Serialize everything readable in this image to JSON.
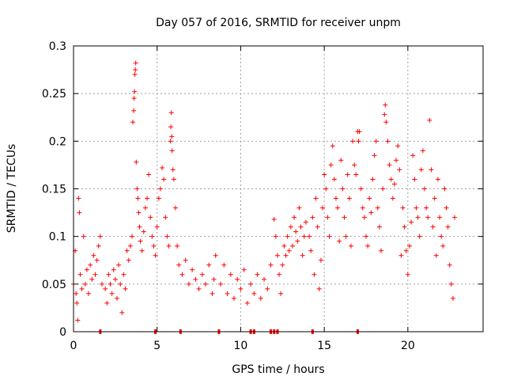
{
  "chart_data": {
    "type": "scatter",
    "title": "Day 057 of 2016, SRMTID for receiver unpm",
    "xlabel": "GPS time / hours",
    "ylabel": "SRMTID / TECUs",
    "xlim": [
      0,
      24.5
    ],
    "ylim": [
      0,
      0.3
    ],
    "xticks": [
      0,
      5,
      10,
      15,
      20
    ],
    "xtick_labels": [
      "0",
      "5",
      "10",
      "15",
      "20"
    ],
    "yticks": [
      0,
      0.05,
      0.1,
      0.15,
      0.2,
      0.25,
      0.3
    ],
    "ytick_labels": [
      "0",
      "0.05",
      "0.1",
      "0.15",
      "0.2",
      "0.25",
      "0.3"
    ],
    "grid": true,
    "marker": "+",
    "color": "#ff0000",
    "series": [
      {
        "name": "SRMTID",
        "points": [
          [
            0.0,
            0.05
          ],
          [
            0.1,
            0.085
          ],
          [
            0.15,
            0.04
          ],
          [
            0.2,
            0.03
          ],
          [
            0.25,
            0.012
          ],
          [
            0.3,
            0.14
          ],
          [
            0.35,
            0.125
          ],
          [
            0.4,
            0.06
          ],
          [
            0.5,
            0.045
          ],
          [
            0.6,
            0.1
          ],
          [
            0.7,
            0.05
          ],
          [
            0.8,
            0.065
          ],
          [
            0.9,
            0.04
          ],
          [
            1.0,
            0.07
          ],
          [
            1.1,
            0.055
          ],
          [
            1.2,
            0.08
          ],
          [
            1.3,
            0.06
          ],
          [
            1.4,
            0.075
          ],
          [
            1.5,
            0.09
          ],
          [
            1.6,
            0.1
          ],
          [
            1.7,
            0.05
          ],
          [
            1.9,
            0.045
          ],
          [
            2.0,
            0.03
          ],
          [
            2.1,
            0.06
          ],
          [
            2.2,
            0.05
          ],
          [
            2.3,
            0.04
          ],
          [
            2.4,
            0.065
          ],
          [
            2.5,
            0.055
          ],
          [
            2.6,
            0.035
          ],
          [
            2.7,
            0.07
          ],
          [
            2.8,
            0.05
          ],
          [
            2.9,
            0.02
          ],
          [
            3.0,
            0.06
          ],
          [
            3.1,
            0.045
          ],
          [
            3.2,
            0.085
          ],
          [
            3.3,
            0.075
          ],
          [
            3.4,
            0.09
          ],
          [
            3.5,
            0.1
          ],
          [
            3.55,
            0.22
          ],
          [
            3.6,
            0.232
          ],
          [
            3.62,
            0.245
          ],
          [
            3.65,
            0.252
          ],
          [
            3.67,
            0.27
          ],
          [
            3.7,
            0.275
          ],
          [
            3.72,
            0.282
          ],
          [
            3.75,
            0.178
          ],
          [
            3.8,
            0.15
          ],
          [
            3.85,
            0.14
          ],
          [
            3.9,
            0.125
          ],
          [
            3.95,
            0.11
          ],
          [
            4.0,
            0.095
          ],
          [
            4.1,
            0.085
          ],
          [
            4.2,
            0.105
          ],
          [
            4.3,
            0.13
          ],
          [
            4.4,
            0.14
          ],
          [
            4.5,
            0.165
          ],
          [
            4.6,
            0.12
          ],
          [
            4.7,
            0.1
          ],
          [
            4.8,
            0.09
          ],
          [
            4.9,
            0.08
          ],
          [
            5.0,
            0.11
          ],
          [
            5.1,
            0.14
          ],
          [
            5.2,
            0.15
          ],
          [
            5.3,
            0.172
          ],
          [
            5.4,
            0.16
          ],
          [
            5.5,
            0.12
          ],
          [
            5.6,
            0.1
          ],
          [
            5.7,
            0.09
          ],
          [
            5.8,
            0.2
          ],
          [
            5.82,
            0.215
          ],
          [
            5.85,
            0.23
          ],
          [
            5.88,
            0.205
          ],
          [
            5.9,
            0.19
          ],
          [
            5.95,
            0.17
          ],
          [
            6.0,
            0.16
          ],
          [
            6.1,
            0.13
          ],
          [
            6.2,
            0.09
          ],
          [
            6.3,
            0.07
          ],
          [
            6.5,
            0.06
          ],
          [
            6.7,
            0.075
          ],
          [
            6.9,
            0.05
          ],
          [
            7.1,
            0.065
          ],
          [
            7.3,
            0.055
          ],
          [
            7.5,
            0.045
          ],
          [
            7.7,
            0.06
          ],
          [
            7.9,
            0.05
          ],
          [
            8.1,
            0.07
          ],
          [
            8.3,
            0.04
          ],
          [
            8.4,
            0.055
          ],
          [
            8.5,
            0.08
          ],
          [
            8.8,
            0.05
          ],
          [
            9.0,
            0.07
          ],
          [
            9.2,
            0.04
          ],
          [
            9.4,
            0.06
          ],
          [
            9.6,
            0.035
          ],
          [
            9.8,
            0.055
          ],
          [
            10.0,
            0.045
          ],
          [
            10.2,
            0.065
          ],
          [
            10.4,
            0.03
          ],
          [
            10.6,
            0.05
          ],
          [
            10.8,
            0.04
          ],
          [
            11.0,
            0.06
          ],
          [
            11.2,
            0.035
          ],
          [
            11.4,
            0.055
          ],
          [
            11.6,
            0.045
          ],
          [
            11.8,
            0.07
          ],
          [
            12.0,
            0.118
          ],
          [
            12.1,
            0.1
          ],
          [
            12.2,
            0.08
          ],
          [
            12.3,
            0.06
          ],
          [
            12.4,
            0.04
          ],
          [
            12.5,
            0.07
          ],
          [
            12.6,
            0.09
          ],
          [
            12.7,
            0.08
          ],
          [
            12.8,
            0.1
          ],
          [
            12.9,
            0.085
          ],
          [
            13.0,
            0.11
          ],
          [
            13.1,
            0.09
          ],
          [
            13.2,
            0.12
          ],
          [
            13.3,
            0.105
          ],
          [
            13.4,
            0.095
          ],
          [
            13.5,
            0.13
          ],
          [
            13.6,
            0.11
          ],
          [
            13.7,
            0.08
          ],
          [
            13.8,
            0.1
          ],
          [
            13.9,
            0.115
          ],
          [
            14.1,
            0.1
          ],
          [
            14.2,
            0.085
          ],
          [
            14.3,
            0.12
          ],
          [
            14.4,
            0.06
          ],
          [
            14.5,
            0.14
          ],
          [
            14.6,
            0.11
          ],
          [
            14.7,
            0.045
          ],
          [
            14.8,
            0.075
          ],
          [
            14.9,
            0.13
          ],
          [
            15.0,
            0.165
          ],
          [
            15.1,
            0.15
          ],
          [
            15.2,
            0.12
          ],
          [
            15.3,
            0.1
          ],
          [
            15.4,
            0.175
          ],
          [
            15.5,
            0.195
          ],
          [
            15.6,
            0.16
          ],
          [
            15.7,
            0.14
          ],
          [
            15.8,
            0.13
          ],
          [
            15.9,
            0.095
          ],
          [
            16.0,
            0.18
          ],
          [
            16.1,
            0.15
          ],
          [
            16.2,
            0.12
          ],
          [
            16.3,
            0.1
          ],
          [
            16.4,
            0.165
          ],
          [
            16.5,
            0.14
          ],
          [
            16.6,
            0.09
          ],
          [
            16.7,
            0.2
          ],
          [
            16.8,
            0.175
          ],
          [
            16.9,
            0.165
          ],
          [
            17.0,
            0.21
          ],
          [
            17.05,
            0.2
          ],
          [
            17.1,
            0.21
          ],
          [
            17.2,
            0.15
          ],
          [
            17.3,
            0.13
          ],
          [
            17.4,
            0.12
          ],
          [
            17.5,
            0.1
          ],
          [
            17.6,
            0.09
          ],
          [
            17.7,
            0.14
          ],
          [
            17.8,
            0.125
          ],
          [
            17.9,
            0.16
          ],
          [
            18.0,
            0.185
          ],
          [
            18.1,
            0.2
          ],
          [
            18.2,
            0.13
          ],
          [
            18.3,
            0.11
          ],
          [
            18.4,
            0.085
          ],
          [
            18.5,
            0.15
          ],
          [
            18.6,
            0.228
          ],
          [
            18.65,
            0.238
          ],
          [
            18.7,
            0.22
          ],
          [
            18.8,
            0.2
          ],
          [
            18.9,
            0.175
          ],
          [
            19.0,
            0.16
          ],
          [
            19.1,
            0.14
          ],
          [
            19.2,
            0.155
          ],
          [
            19.3,
            0.18
          ],
          [
            19.4,
            0.195
          ],
          [
            19.5,
            0.17
          ],
          [
            19.6,
            0.08
          ],
          [
            19.7,
            0.13
          ],
          [
            19.8,
            0.11
          ],
          [
            19.9,
            0.085
          ],
          [
            20.0,
            0.06
          ],
          [
            20.1,
            0.09
          ],
          [
            20.2,
            0.115
          ],
          [
            20.3,
            0.185
          ],
          [
            20.4,
            0.16
          ],
          [
            20.5,
            0.13
          ],
          [
            20.6,
            0.12
          ],
          [
            20.7,
            0.1
          ],
          [
            20.8,
            0.17
          ],
          [
            20.9,
            0.19
          ],
          [
            21.0,
            0.15
          ],
          [
            21.1,
            0.13
          ],
          [
            21.2,
            0.12
          ],
          [
            21.3,
            0.222
          ],
          [
            21.4,
            0.17
          ],
          [
            21.5,
            0.11
          ],
          [
            21.6,
            0.14
          ],
          [
            21.7,
            0.08
          ],
          [
            21.8,
            0.16
          ],
          [
            21.9,
            0.12
          ],
          [
            22.0,
            0.1
          ],
          [
            22.1,
            0.09
          ],
          [
            22.2,
            0.15
          ],
          [
            22.3,
            0.13
          ],
          [
            22.4,
            0.11
          ],
          [
            22.5,
            0.07
          ],
          [
            22.6,
            0.05
          ],
          [
            22.7,
            0.035
          ],
          [
            22.8,
            0.12
          ]
        ]
      }
    ],
    "baseline_markers_x": [
      1.6,
      4.9,
      6.4,
      8.7,
      10.6,
      10.8,
      11.8,
      12.0,
      12.2,
      14.3,
      17.0
    ]
  }
}
